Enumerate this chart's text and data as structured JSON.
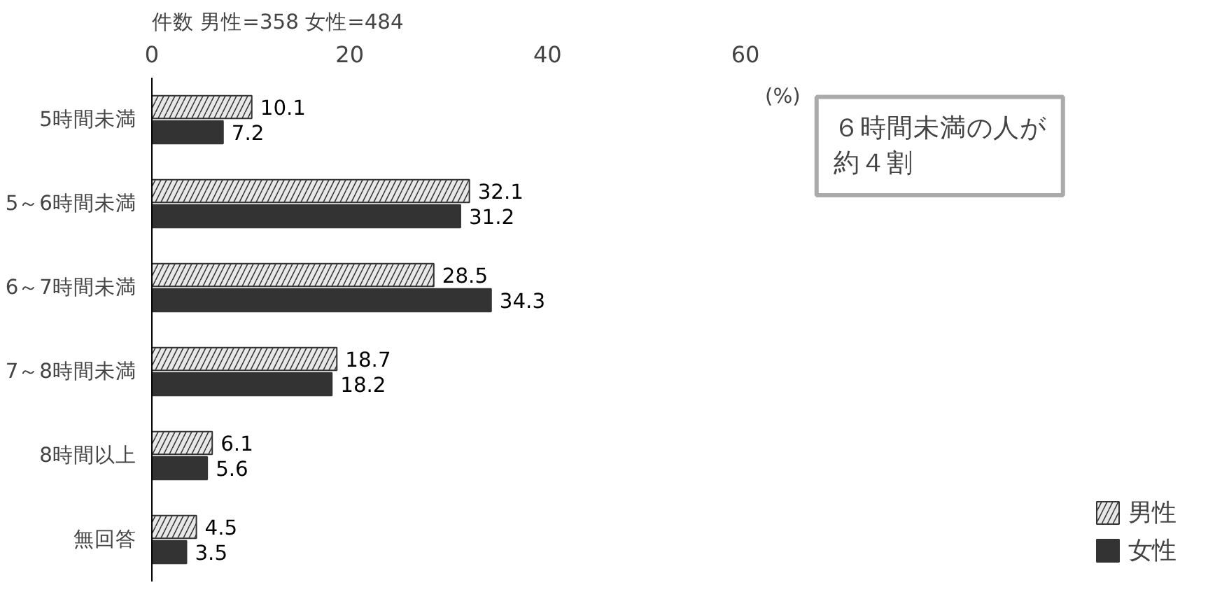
{
  "chart_data": {
    "type": "bar",
    "orientation": "horizontal",
    "categories": [
      "5時間未満",
      "5～6時間未満",
      "6～7時間未満",
      "7～8時間未満",
      "8時間以上",
      "無回答"
    ],
    "series": [
      {
        "name": "男性",
        "color": "#e8e8e8",
        "values": [
          10.1,
          32.1,
          28.5,
          18.7,
          6.1,
          4.5
        ]
      },
      {
        "name": "女性",
        "color": "#333333",
        "values": [
          7.2,
          31.2,
          34.3,
          18.2,
          5.6,
          3.5
        ]
      }
    ],
    "xlim": [
      0,
      60
    ],
    "xticks": [
      0,
      20,
      40,
      60
    ],
    "data_labels": true,
    "legend": "bottom right",
    "grid": false,
    "annotations": [
      "件数 男性=358 女性=484",
      "(%)",
      "６時間未満の人が約４割"
    ]
  }
}
